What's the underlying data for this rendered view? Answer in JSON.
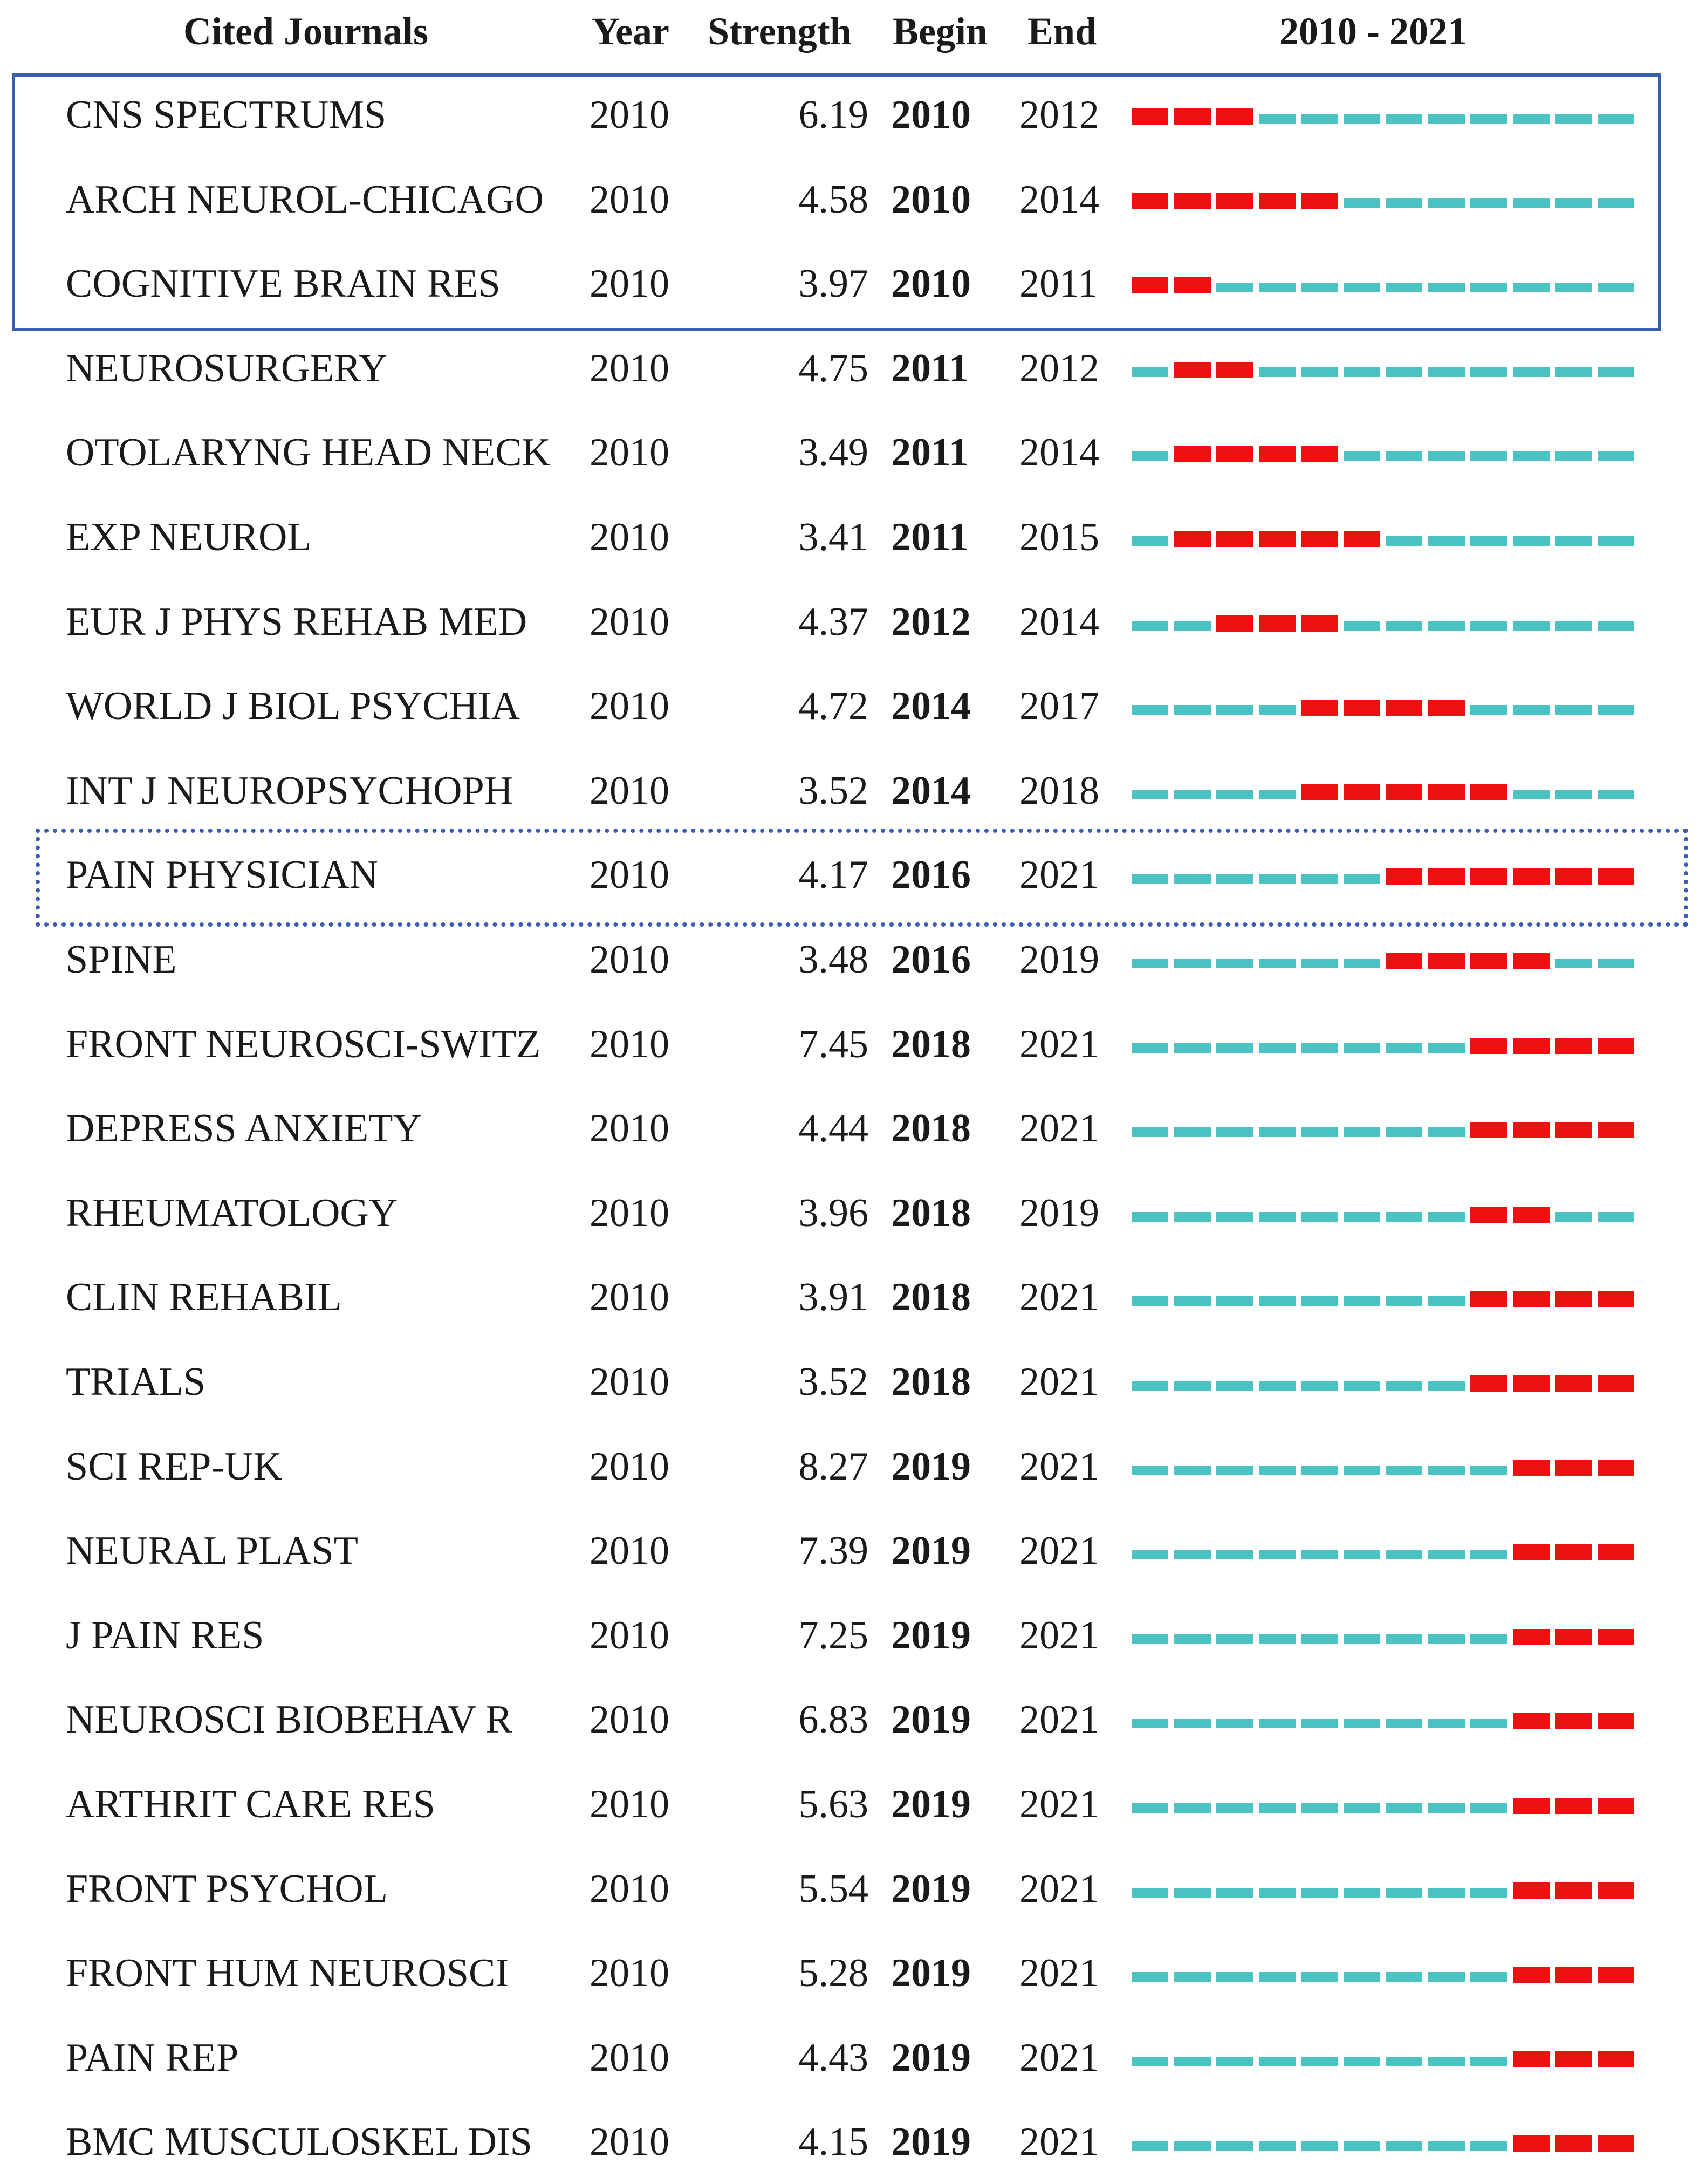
{
  "chart_data": {
    "type": "table",
    "headers": {
      "journal": "Cited Journals",
      "year": "Year",
      "strength": "Strength",
      "begin": "Begin",
      "end": "End",
      "range": "2010 - 2021"
    },
    "timeline": {
      "start": 2010,
      "end": 2021
    },
    "colors": {
      "burst": "#ee1111",
      "baseline": "#4cc3c3",
      "box": "#3a5fb0"
    },
    "rows": [
      {
        "journal": "CNS SPECTRUMS",
        "year": "2010",
        "strength": "6.19",
        "begin": "2010",
        "end": "2012"
      },
      {
        "journal": "ARCH NEUROL-CHICAGO",
        "year": "2010",
        "strength": "4.58",
        "begin": "2010",
        "end": "2014"
      },
      {
        "journal": "COGNITIVE BRAIN RES",
        "year": "2010",
        "strength": "3.97",
        "begin": "2010",
        "end": "2011"
      },
      {
        "journal": "NEUROSURGERY",
        "year": "2010",
        "strength": "4.75",
        "begin": "2011",
        "end": "2012"
      },
      {
        "journal": "OTOLARYNG HEAD NECK",
        "year": "2010",
        "strength": "3.49",
        "begin": "2011",
        "end": "2014"
      },
      {
        "journal": "EXP NEUROL",
        "year": "2010",
        "strength": "3.41",
        "begin": "2011",
        "end": "2015"
      },
      {
        "journal": "EUR J PHYS REHAB MED",
        "year": "2010",
        "strength": "4.37",
        "begin": "2012",
        "end": "2014"
      },
      {
        "journal": "WORLD J BIOL PSYCHIA",
        "year": "2010",
        "strength": "4.72",
        "begin": "2014",
        "end": "2017"
      },
      {
        "journal": "INT J NEUROPSYCHOPH",
        "year": "2010",
        "strength": "3.52",
        "begin": "2014",
        "end": "2018"
      },
      {
        "journal": "PAIN PHYSICIAN",
        "year": "2010",
        "strength": "4.17",
        "begin": "2016",
        "end": "2021"
      },
      {
        "journal": "SPINE",
        "year": "2010",
        "strength": "3.48",
        "begin": "2016",
        "end": "2019"
      },
      {
        "journal": "FRONT NEUROSCI-SWITZ",
        "year": "2010",
        "strength": "7.45",
        "begin": "2018",
        "end": "2021"
      },
      {
        "journal": "DEPRESS ANXIETY",
        "year": "2010",
        "strength": "4.44",
        "begin": "2018",
        "end": "2021"
      },
      {
        "journal": "RHEUMATOLOGY",
        "year": "2010",
        "strength": "3.96",
        "begin": "2018",
        "end": "2019"
      },
      {
        "journal": "CLIN REHABIL",
        "year": "2010",
        "strength": "3.91",
        "begin": "2018",
        "end": "2021"
      },
      {
        "journal": "TRIALS",
        "year": "2010",
        "strength": "3.52",
        "begin": "2018",
        "end": "2021"
      },
      {
        "journal": "SCI REP-UK",
        "year": "2010",
        "strength": "8.27",
        "begin": "2019",
        "end": "2021"
      },
      {
        "journal": "NEURAL PLAST",
        "year": "2010",
        "strength": "7.39",
        "begin": "2019",
        "end": "2021"
      },
      {
        "journal": "J PAIN RES",
        "year": "2010",
        "strength": "7.25",
        "begin": "2019",
        "end": "2021"
      },
      {
        "journal": "NEUROSCI BIOBEHAV R",
        "year": "2010",
        "strength": "6.83",
        "begin": "2019",
        "end": "2021"
      },
      {
        "journal": "ARTHRIT CARE RES",
        "year": "2010",
        "strength": "5.63",
        "begin": "2019",
        "end": "2021"
      },
      {
        "journal": "FRONT PSYCHOL",
        "year": "2010",
        "strength": "5.54",
        "begin": "2019",
        "end": "2021"
      },
      {
        "journal": "FRONT HUM NEUROSCI",
        "year": "2010",
        "strength": "5.28",
        "begin": "2019",
        "end": "2021"
      },
      {
        "journal": "PAIN REP",
        "year": "2010",
        "strength": "4.43",
        "begin": "2019",
        "end": "2021"
      },
      {
        "journal": "BMC MUSCULOSKEL DIS",
        "year": "2010",
        "strength": "4.15",
        "begin": "2019",
        "end": "2021"
      }
    ]
  }
}
